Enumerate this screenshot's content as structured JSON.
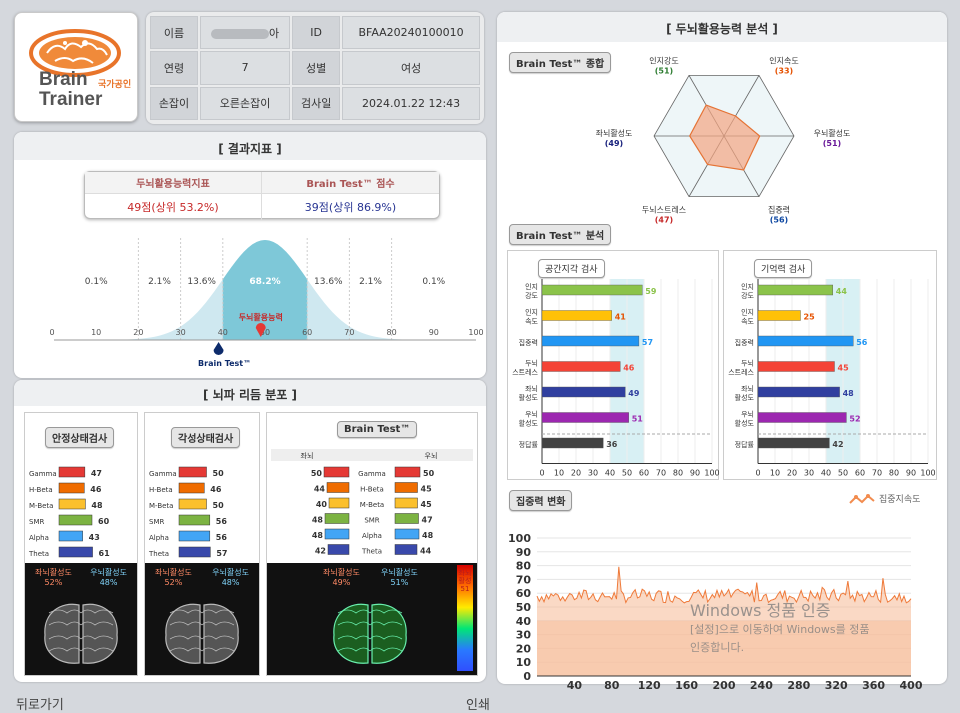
{
  "profile": {
    "name_label": "이름",
    "name_value": "아",
    "id_label": "ID",
    "id_value": "BFAA20240100010",
    "age_label": "연령",
    "age_value": "7",
    "gender_label": "성별",
    "gender_value": "여성",
    "hand_label": "손잡이",
    "hand_value": "오른손잡이",
    "date_label": "검사일",
    "date_value": "2024.01.22 12:43"
  },
  "logo": {
    "line1": "Brain",
    "line2": "Trainer",
    "badge": "국가공인"
  },
  "result": {
    "title": "[ 결과지표 ]",
    "h1": "두뇌활용능력지표",
    "h2": "Brain Test™ 점수",
    "v1": "49점(상위 53.2%)",
    "v2": "39점(상위 86.9%)",
    "pct": [
      "0.1%",
      "2.1%",
      "13.6%",
      "68.2%",
      "13.6%",
      "2.1%",
      "0.1%"
    ],
    "ticks": [
      "0",
      "10",
      "20",
      "30",
      "40",
      "50",
      "60",
      "70",
      "80",
      "90",
      "100"
    ],
    "marker1": "두뇌활용능력",
    "marker2": "Brain Test™",
    "score1": 49,
    "score2": 39
  },
  "brain": {
    "title": "[ 뇌파 리듬 분포 ]",
    "p1_title": "안정상태검사",
    "p2_title": "각성상태검사",
    "p3_title": "Brain Test™",
    "p3_left": "좌뇌",
    "p3_right": "우뇌",
    "bands": [
      "Gamma",
      "H-Beta",
      "M-Beta",
      "SMR",
      "Alpha",
      "Theta"
    ],
    "p1_values": [
      "47",
      "46",
      "48",
      "60",
      "43",
      "61"
    ],
    "p2_values": [
      "50",
      "46",
      "50",
      "56",
      "56",
      "57"
    ],
    "p3_left_values": [
      "50",
      "44",
      "40",
      "48",
      "48",
      "42"
    ],
    "p3_right_values": [
      "50",
      "45",
      "45",
      "47",
      "48",
      "44"
    ],
    "img1_left": "좌뇌활성도",
    "img1_left_val": "52%",
    "img1_right": "우뇌활성도",
    "img1_right_val": "48%",
    "img2_left": "좌뇌활성도",
    "img2_left_val": "52%",
    "img2_right": "우뇌활성도",
    "img2_right_val": "48%",
    "img3_left": "좌뇌활성도",
    "img3_left_val": "49%",
    "img3_right": "우뇌활성도",
    "img3_right_val": "51%",
    "scale_label": "좌뇌활성",
    "scale_val": "51"
  },
  "analysis": {
    "title": "[ 두뇌활용능력 분석 ]",
    "radar_tab": "Brain Test™ 종합",
    "radar": [
      {
        "name": "인지강도",
        "value": "51",
        "color": "#2e7d32"
      },
      {
        "name": "인지속도",
        "value": "33",
        "color": "#e65100"
      },
      {
        "name": "우뇌활성도",
        "value": "51",
        "color": "#6a1b9a"
      },
      {
        "name": "집중력",
        "value": "56",
        "color": "#0d47a1"
      },
      {
        "name": "두뇌스트레스",
        "value": "47",
        "color": "#c62828"
      },
      {
        "name": "좌뇌활성도",
        "value": "49",
        "color": "#1a237e"
      }
    ],
    "bar_tab": "Brain Test™ 분석",
    "left_chart_title": "공간지각 검사",
    "right_chart_title": "기억력 검사",
    "bar_labels": [
      [
        "인지",
        "강도"
      ],
      [
        "인지",
        "속도"
      ],
      [
        "집중력"
      ],
      [
        "두뇌",
        "스트레스"
      ],
      [
        "좌뇌",
        "활성도"
      ],
      [
        "우뇌",
        "활성도"
      ],
      [
        "정답률"
      ]
    ],
    "left_values": [
      59,
      41,
      57,
      46,
      49,
      51,
      36
    ],
    "right_values": [
      44,
      25,
      56,
      45,
      48,
      52,
      42
    ],
    "bar_colors": [
      "#8bc34a",
      "#ffc107",
      "#2196f3",
      "#f44336",
      "#303f9f",
      "#9c27b0",
      "#424242"
    ],
    "bar_ticks": [
      "0",
      "10",
      "20",
      "30",
      "40",
      "50",
      "60",
      "70",
      "80",
      "90",
      "100"
    ],
    "focus_tab": "집중력 변화",
    "focus_legend": "집중지속도",
    "focus_yticks": [
      "0",
      "10",
      "20",
      "30",
      "40",
      "50",
      "60",
      "70",
      "80",
      "90",
      "100"
    ],
    "focus_xticks": [
      "40",
      "80",
      "120",
      "160",
      "200",
      "240",
      "280",
      "320",
      "360",
      "400"
    ]
  },
  "footer": {
    "left": "뒤로가기",
    "right": "인쇄"
  },
  "watermark": {
    "line1": "Windows 정품 인증",
    "line2": "[설정]으로 이동하여 Windows를 정품",
    "line3": "인증합니다."
  },
  "colors": {
    "panel_bg": "#ffffff",
    "page_bg": "#d5d8dd",
    "curve": "#7ec8d8",
    "radar_fill": "#f4a582"
  }
}
